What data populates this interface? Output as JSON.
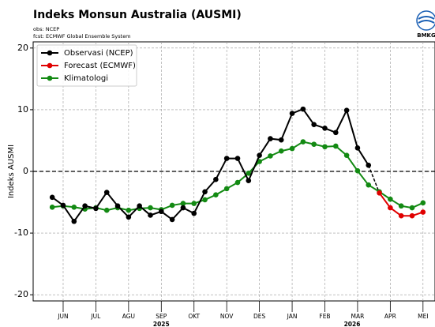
{
  "chart_data": {
    "type": "line",
    "title": "Indeks Monsun Australia (AUSMI)",
    "subtitle": [
      "obs: NCEP",
      "fcst: ECMWF Global Ensemble System"
    ],
    "logo": "BMKG",
    "y_label": "Indeks AUSMI",
    "xlim": [
      -1.75,
      35.1
    ],
    "xticks": [
      {
        "value": 1,
        "label": "JUN"
      },
      {
        "value": 4,
        "label": "JUL"
      },
      {
        "value": 7,
        "label": "AGU"
      },
      {
        "value": 10,
        "label": "SEP"
      },
      {
        "value": 13,
        "label": "OKT"
      },
      {
        "value": 16,
        "label": "NOV"
      },
      {
        "value": 19,
        "label": "DES"
      },
      {
        "value": 22,
        "label": "JAN"
      },
      {
        "value": 25,
        "label": "FEB"
      },
      {
        "value": 28,
        "label": "MAR"
      },
      {
        "value": 31,
        "label": "APR"
      },
      {
        "value": 34,
        "label": "MEI"
      }
    ],
    "years": [
      {
        "value": 10,
        "label": "2025"
      },
      {
        "value": 27.5,
        "label": "2026"
      }
    ],
    "ylim": [
      -21,
      21
    ],
    "yticks": [
      -20,
      -10,
      0,
      10,
      20
    ],
    "grid": true,
    "legend": "upper left",
    "series": [
      {
        "name": "Observasi (NCEP)",
        "color": "#000000",
        "values": [
          -4.2,
          -5.5,
          -8.1,
          -5.6,
          -6.0,
          -3.4,
          -5.6,
          -7.4,
          -5.6,
          -7.1,
          -6.5,
          -7.8,
          -5.9,
          -6.8,
          -3.3,
          -1.3,
          2.1,
          2.1,
          -1.5,
          2.6,
          5.3,
          5.1,
          9.4,
          10.1,
          7.6,
          7.0,
          6.3,
          9.9,
          3.8,
          1.0,
          null,
          null,
          null,
          null,
          null
        ]
      },
      {
        "name": "Forecast (ECMWF)",
        "color": "#e00000",
        "values": [
          null,
          null,
          null,
          null,
          null,
          null,
          null,
          null,
          null,
          null,
          null,
          null,
          null,
          null,
          null,
          null,
          null,
          null,
          null,
          null,
          null,
          null,
          null,
          null,
          null,
          null,
          null,
          null,
          null,
          null,
          -3.5,
          -5.9,
          -7.2,
          -7.2,
          -6.6
        ]
      },
      {
        "name": "Klimatologi",
        "color": "#138a13",
        "values": [
          -5.8,
          -5.6,
          -5.8,
          -6.1,
          -5.9,
          -6.3,
          -5.9,
          -6.3,
          -6.0,
          -5.9,
          -6.2,
          -5.5,
          -5.2,
          -5.2,
          -4.6,
          -3.8,
          -2.8,
          -1.8,
          -0.3,
          1.6,
          2.5,
          3.3,
          3.7,
          4.8,
          4.4,
          4.0,
          4.1,
          2.6,
          0.1,
          -2.2,
          -3.3,
          -4.5,
          -5.6,
          -5.9,
          -5.1
        ]
      }
    ]
  }
}
